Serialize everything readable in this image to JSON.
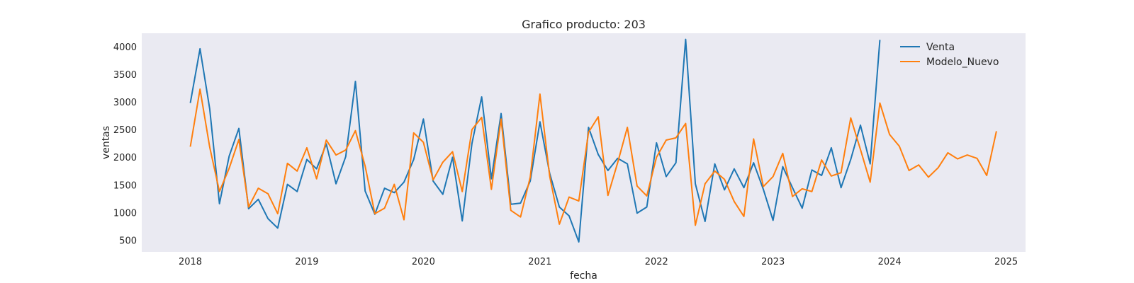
{
  "chart_data": {
    "type": "line",
    "title": "Grafico producto: 203",
    "xlabel": "fecha",
    "ylabel": "ventas",
    "x_start": "2018-01",
    "x_ticks": [
      "2018",
      "2019",
      "2020",
      "2021",
      "2022",
      "2023",
      "2024",
      "2025"
    ],
    "xlim": [
      "2017-08",
      "2025-03"
    ],
    "y_ticks": [
      500,
      1000,
      1500,
      2000,
      2500,
      3000,
      3500,
      4000
    ],
    "ylim": [
      290,
      4240
    ],
    "grid": false,
    "legend_position": "top-right",
    "series": [
      {
        "name": "Venta",
        "color": "#1f77b4",
        "values": [
          2980,
          3960,
          2870,
          1160,
          2020,
          2520,
          1070,
          1240,
          890,
          720,
          1510,
          1380,
          1960,
          1790,
          2240,
          1520,
          2010,
          3370,
          1390,
          970,
          1440,
          1360,
          1550,
          1960,
          2690,
          1570,
          1330,
          2000,
          850,
          2250,
          3090,
          1610,
          2790,
          1150,
          1170,
          1570,
          2640,
          1710,
          1100,
          940,
          470,
          2540,
          2050,
          1760,
          1980,
          1880,
          990,
          1100,
          2260,
          1650,
          1900,
          4130,
          1520,
          840,
          1880,
          1410,
          1790,
          1450,
          1900,
          1420,
          860,
          1830,
          1450,
          1080,
          1770,
          1670,
          2170,
          1450,
          1960,
          2580,
          1880,
          4120
        ]
      },
      {
        "name": "Modelo_Nuevo",
        "color": "#ff7f0e",
        "values": [
          2190,
          3230,
          2180,
          1380,
          1800,
          2320,
          1100,
          1440,
          1340,
          980,
          1890,
          1750,
          2170,
          1610,
          2310,
          2040,
          2130,
          2480,
          1840,
          980,
          1080,
          1510,
          870,
          2440,
          2270,
          1590,
          1910,
          2100,
          1380,
          2500,
          2720,
          1420,
          2690,
          1040,
          920,
          1640,
          3140,
          1660,
          790,
          1280,
          1210,
          2450,
          2730,
          1310,
          1900,
          2540,
          1480,
          1300,
          2000,
          2310,
          2350,
          2610,
          770,
          1520,
          1750,
          1600,
          1200,
          930,
          2330,
          1470,
          1650,
          2070,
          1290,
          1430,
          1380,
          1950,
          1660,
          1720,
          2710,
          2140,
          1550,
          2980,
          2410,
          2200,
          1760,
          1860,
          1640,
          1810,
          2080,
          1970,
          2040,
          1980,
          1670,
          2470
        ]
      }
    ]
  }
}
